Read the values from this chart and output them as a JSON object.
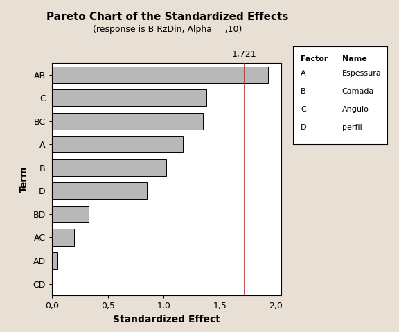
{
  "title": "Pareto Chart of the Standardized Effects",
  "subtitle": "(response is B RzDin, Alpha = ,10)",
  "xlabel": "Standardized Effect",
  "ylabel": "Term",
  "terms": [
    "CD",
    "AD",
    "AC",
    "BD",
    "D",
    "B",
    "A",
    "BC",
    "C",
    "AB"
  ],
  "values": [
    0.0,
    0.05,
    0.2,
    0.33,
    0.85,
    1.02,
    1.17,
    1.35,
    1.38,
    1.93
  ],
  "bar_color": "#b8b8b8",
  "bar_edge_color": "#000000",
  "ref_line": 1.721,
  "ref_line_label": "1,721",
  "ref_line_color": "#aa2222",
  "xlim": [
    0,
    2.05
  ],
  "xticks": [
    0.0,
    0.5,
    1.0,
    1.5,
    2.0
  ],
  "xtick_labels": [
    "0,0",
    "0,5",
    "1,0",
    "1,5",
    "2,0"
  ],
  "background_color": "#e8e0d4",
  "plot_bg_color": "#ffffff",
  "legend_factors": [
    "A",
    "B",
    "C",
    "D"
  ],
  "legend_names": [
    "Espessura",
    "Camada",
    "Angulo",
    "perfil"
  ],
  "title_fontsize": 11,
  "subtitle_fontsize": 9,
  "label_fontsize": 10,
  "tick_fontsize": 9,
  "legend_fontsize": 8
}
